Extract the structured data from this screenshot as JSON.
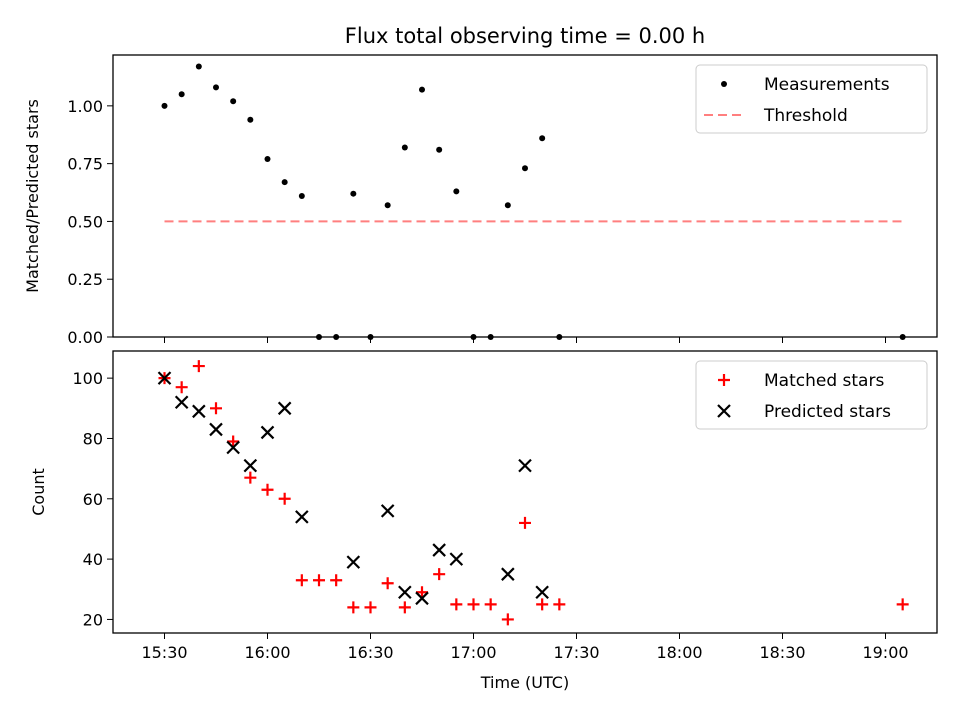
{
  "title": "Flux total observing time = 0.00 h",
  "chart_data": [
    {
      "type": "scatter",
      "panel": "top",
      "title": "Flux total observing time = 0.00 h",
      "xlabel": "",
      "ylabel": "Matched/Predicted stars",
      "ylim": [
        0.0,
        1.22
      ],
      "yticks": [
        "0.00",
        "0.25",
        "0.50",
        "0.75",
        "1.00"
      ],
      "legend": "top-right",
      "series": [
        {
          "name": "Measurements",
          "marker": "dot",
          "color": "#000000",
          "x": [
            "15:30",
            "15:35",
            "15:40",
            "15:45",
            "15:50",
            "15:55",
            "16:00",
            "16:05",
            "16:10",
            "16:15",
            "16:20",
            "16:25",
            "16:30",
            "16:35",
            "16:40",
            "16:45",
            "16:50",
            "16:55",
            "17:00",
            "17:05",
            "17:10",
            "17:15",
            "17:20",
            "17:25",
            "19:05"
          ],
          "y": [
            1.0,
            1.05,
            1.17,
            1.08,
            1.02,
            0.94,
            0.77,
            0.67,
            0.61,
            0.0,
            0.0,
            0.62,
            0.0,
            0.57,
            0.82,
            1.07,
            0.81,
            0.63,
            0.0,
            0.0,
            0.57,
            0.73,
            0.86,
            0.0,
            0.0
          ]
        },
        {
          "name": "Threshold",
          "style": "dashed",
          "color": "#ff7f7f",
          "x": [
            "15:30",
            "19:05"
          ],
          "y": [
            0.5,
            0.5
          ]
        }
      ]
    },
    {
      "type": "scatter",
      "panel": "bottom",
      "title": "",
      "xlabel": "Time (UTC)",
      "ylabel": "Count",
      "ylim": [
        15.5,
        109
      ],
      "yticks": [
        "20",
        "40",
        "60",
        "80",
        "100"
      ],
      "xlim": [
        "15:15",
        "19:15"
      ],
      "xticks": [
        "15:30",
        "16:00",
        "16:30",
        "17:00",
        "17:30",
        "18:00",
        "18:30",
        "19:00"
      ],
      "legend": "top-right",
      "series": [
        {
          "name": "Matched stars",
          "marker": "plus",
          "color": "#ff0000",
          "x": [
            "15:30",
            "15:35",
            "15:40",
            "15:45",
            "15:50",
            "15:55",
            "16:00",
            "16:05",
            "16:10",
            "16:15",
            "16:20",
            "16:25",
            "16:30",
            "16:35",
            "16:40",
            "16:45",
            "16:50",
            "16:55",
            "17:00",
            "17:05",
            "17:10",
            "17:15",
            "17:20",
            "17:25",
            "19:05"
          ],
          "y": [
            100,
            97,
            104,
            90,
            79,
            67,
            63,
            60,
            33,
            33,
            33,
            24,
            24,
            32,
            24,
            29,
            35,
            25,
            25,
            25,
            20,
            52,
            25,
            25,
            25
          ]
        },
        {
          "name": "Predicted stars",
          "marker": "x",
          "color": "#000000",
          "x": [
            "15:30",
            "15:35",
            "15:40",
            "15:45",
            "15:50",
            "15:55",
            "16:00",
            "16:05",
            "16:10",
            "16:25",
            "16:35",
            "16:40",
            "16:45",
            "16:50",
            "16:55",
            "17:10",
            "17:15",
            "17:20"
          ],
          "y": [
            100,
            92,
            89,
            83,
            77,
            71,
            82,
            90,
            54,
            39,
            56,
            29,
            27,
            43,
            40,
            35,
            71,
            29
          ]
        }
      ]
    }
  ]
}
